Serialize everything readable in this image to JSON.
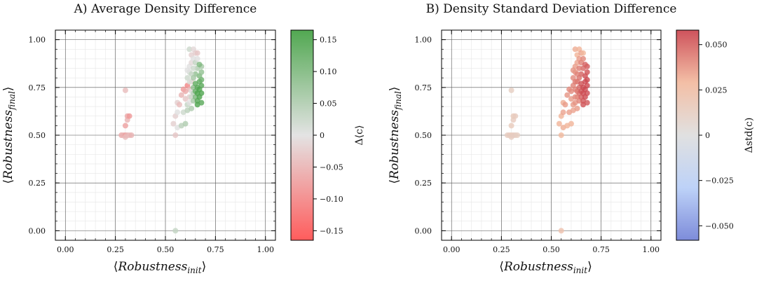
{
  "chart_data": [
    {
      "type": "scatter",
      "title": "A) Average Density Difference",
      "xlabel_main": "Robustness",
      "xlabel_sub": "init",
      "ylabel_main": "Robustness",
      "ylabel_sub": "final",
      "xlim": [
        -0.05,
        1.05
      ],
      "ylim": [
        -0.05,
        1.05
      ],
      "xticks": [
        0,
        0.25,
        0.5,
        0.75,
        1
      ],
      "xtick_labels": [
        "0.00",
        "0.25",
        "0.50",
        "0.75",
        "1.00"
      ],
      "yticks": [
        0,
        0.25,
        0.5,
        0.75,
        1
      ],
      "ytick_labels": [
        "0.00",
        "0.25",
        "0.50",
        "0.75",
        "1.00"
      ],
      "grid": true,
      "colorbar": {
        "label": "Δ⟨c⟩",
        "range": [
          -0.165,
          0.165
        ],
        "ticks": [
          -0.15,
          -0.1,
          -0.05,
          0,
          0.05,
          0.1,
          0.15
        ],
        "tick_labels": [
          "−0.15",
          "−0.10",
          "−0.05",
          "0",
          "0.05",
          "0.10",
          "0.15"
        ],
        "colors": [
          "#ff4a4a",
          "#e0e0e0",
          "#3e9e3e"
        ]
      },
      "points": [
        [
          0.3,
          0.735,
          -0.04
        ],
        [
          0.3,
          0.55,
          -0.07
        ],
        [
          0.31,
          0.58,
          -0.05
        ],
        [
          0.31,
          0.6,
          -0.06
        ],
        [
          0.32,
          0.6,
          -0.08
        ],
        [
          0.28,
          0.5,
          -0.06
        ],
        [
          0.29,
          0.5,
          -0.05
        ],
        [
          0.3,
          0.5,
          -0.07
        ],
        [
          0.31,
          0.5,
          -0.05
        ],
        [
          0.32,
          0.5,
          -0.04
        ],
        [
          0.33,
          0.5,
          -0.05
        ],
        [
          0.3,
          0.49,
          -0.04
        ],
        [
          0.55,
          0.0,
          0.03
        ],
        [
          0.54,
          0.56,
          -0.02
        ],
        [
          0.55,
          0.5,
          -0.03
        ],
        [
          0.56,
          0.54,
          0.0
        ],
        [
          0.55,
          0.6,
          -0.02
        ],
        [
          0.56,
          0.62,
          0.0
        ],
        [
          0.56,
          0.67,
          -0.02
        ],
        [
          0.57,
          0.66,
          -0.04
        ],
        [
          0.58,
          0.55,
          0.04
        ],
        [
          0.59,
          0.62,
          0.02
        ],
        [
          0.6,
          0.56,
          0.05
        ],
        [
          0.58,
          0.71,
          -0.05
        ],
        [
          0.59,
          0.74,
          -0.08
        ],
        [
          0.6,
          0.69,
          -0.03
        ],
        [
          0.6,
          0.73,
          -0.06
        ],
        [
          0.61,
          0.76,
          -0.1
        ],
        [
          0.61,
          0.63,
          0.04
        ],
        [
          0.61,
          0.66,
          0.03
        ],
        [
          0.62,
          0.67,
          0.0
        ],
        [
          0.62,
          0.7,
          -0.02
        ],
        [
          0.62,
          0.74,
          -0.05
        ],
        [
          0.63,
          0.64,
          0.05
        ],
        [
          0.63,
          0.7,
          0.02
        ],
        [
          0.63,
          0.73,
          0.0
        ],
        [
          0.63,
          0.78,
          -0.02
        ],
        [
          0.64,
          0.68,
          0.06
        ],
        [
          0.64,
          0.72,
          0.04
        ],
        [
          0.64,
          0.75,
          0.08
        ],
        [
          0.65,
          0.7,
          0.1
        ],
        [
          0.65,
          0.73,
          0.12
        ],
        [
          0.65,
          0.77,
          0.13
        ],
        [
          0.66,
          0.68,
          0.14
        ],
        [
          0.66,
          0.72,
          0.15
        ],
        [
          0.66,
          0.75,
          0.14
        ],
        [
          0.67,
          0.7,
          0.15
        ],
        [
          0.67,
          0.74,
          0.15
        ],
        [
          0.67,
          0.78,
          0.13
        ],
        [
          0.68,
          0.72,
          0.15
        ],
        [
          0.68,
          0.76,
          0.14
        ],
        [
          0.68,
          0.79,
          0.12
        ],
        [
          0.66,
          0.66,
          0.15
        ],
        [
          0.68,
          0.67,
          0.14
        ],
        [
          0.67,
          0.81,
          0.1
        ],
        [
          0.68,
          0.83,
          0.08
        ],
        [
          0.68,
          0.86,
          0.06
        ],
        [
          0.61,
          0.8,
          0.02
        ],
        [
          0.62,
          0.83,
          0.01
        ],
        [
          0.62,
          0.86,
          0.0
        ],
        [
          0.63,
          0.88,
          -0.01
        ],
        [
          0.63,
          0.92,
          -0.02
        ],
        [
          0.62,
          0.95,
          0.02
        ],
        [
          0.64,
          0.95,
          -0.01
        ],
        [
          0.64,
          0.9,
          0.0
        ],
        [
          0.65,
          0.93,
          -0.02
        ],
        [
          0.65,
          0.88,
          0.03
        ],
        [
          0.66,
          0.9,
          0.0
        ],
        [
          0.66,
          0.85,
          0.05
        ],
        [
          0.64,
          0.85,
          0.02
        ],
        [
          0.65,
          0.82,
          0.08
        ],
        [
          0.67,
          0.87,
          0.1
        ],
        [
          0.63,
          0.82,
          0.03
        ],
        [
          0.64,
          0.8,
          0.06
        ],
        [
          0.62,
          0.78,
          0.01
        ],
        [
          0.61,
          0.84,
          0.0
        ],
        [
          0.66,
          0.93,
          -0.03
        ]
      ]
    },
    {
      "type": "scatter",
      "title": "B) Density Standard Deviation Difference",
      "xlabel_main": "Robustness",
      "xlabel_sub": "init",
      "ylabel_main": "Robustness",
      "ylabel_sub": "final",
      "xlim": [
        -0.05,
        1.05
      ],
      "ylim": [
        -0.05,
        1.05
      ],
      "xticks": [
        0,
        0.25,
        0.5,
        0.75,
        1
      ],
      "xtick_labels": [
        "0.00",
        "0.25",
        "0.50",
        "0.75",
        "1.00"
      ],
      "yticks": [
        0,
        0.25,
        0.5,
        0.75,
        1
      ],
      "ytick_labels": [
        "0.00",
        "0.25",
        "0.50",
        "0.75",
        "1.00"
      ],
      "grid": true,
      "colorbar": {
        "label": "Δstd(c)",
        "range": [
          -0.058,
          0.058
        ],
        "ticks": [
          -0.05,
          -0.025,
          0,
          0.025,
          0.05
        ],
        "tick_labels": [
          "−0.050",
          "−0.025",
          "0",
          "0.025",
          "0.050"
        ],
        "colors": [
          "#6f7fd6",
          "#b6cdf7",
          "#dddddd",
          "#f2b89c",
          "#c9404a"
        ]
      },
      "points": [
        [
          0.3,
          0.735,
          0.012
        ],
        [
          0.3,
          0.55,
          0.015
        ],
        [
          0.31,
          0.58,
          0.014
        ],
        [
          0.31,
          0.6,
          0.016
        ],
        [
          0.32,
          0.6,
          0.014
        ],
        [
          0.28,
          0.5,
          0.013
        ],
        [
          0.29,
          0.5,
          0.014
        ],
        [
          0.3,
          0.5,
          0.015
        ],
        [
          0.31,
          0.5,
          0.014
        ],
        [
          0.32,
          0.5,
          0.013
        ],
        [
          0.33,
          0.5,
          0.012
        ],
        [
          0.3,
          0.49,
          0.013
        ],
        [
          0.55,
          0.0,
          0.022
        ],
        [
          0.54,
          0.56,
          0.03
        ],
        [
          0.55,
          0.5,
          0.028
        ],
        [
          0.56,
          0.54,
          0.032
        ],
        [
          0.55,
          0.6,
          0.03
        ],
        [
          0.56,
          0.62,
          0.034
        ],
        [
          0.56,
          0.67,
          0.032
        ],
        [
          0.57,
          0.66,
          0.036
        ],
        [
          0.58,
          0.55,
          0.03
        ],
        [
          0.59,
          0.62,
          0.035
        ],
        [
          0.6,
          0.56,
          0.03
        ],
        [
          0.58,
          0.71,
          0.038
        ],
        [
          0.59,
          0.74,
          0.04
        ],
        [
          0.6,
          0.69,
          0.036
        ],
        [
          0.6,
          0.73,
          0.04
        ],
        [
          0.61,
          0.76,
          0.042
        ],
        [
          0.61,
          0.63,
          0.034
        ],
        [
          0.61,
          0.66,
          0.036
        ],
        [
          0.62,
          0.67,
          0.038
        ],
        [
          0.62,
          0.7,
          0.04
        ],
        [
          0.62,
          0.74,
          0.042
        ],
        [
          0.63,
          0.64,
          0.036
        ],
        [
          0.63,
          0.7,
          0.04
        ],
        [
          0.63,
          0.73,
          0.044
        ],
        [
          0.63,
          0.78,
          0.046
        ],
        [
          0.64,
          0.68,
          0.042
        ],
        [
          0.64,
          0.72,
          0.046
        ],
        [
          0.64,
          0.75,
          0.048
        ],
        [
          0.65,
          0.7,
          0.05
        ],
        [
          0.65,
          0.73,
          0.052
        ],
        [
          0.65,
          0.77,
          0.054
        ],
        [
          0.66,
          0.68,
          0.052
        ],
        [
          0.66,
          0.72,
          0.055
        ],
        [
          0.66,
          0.75,
          0.056
        ],
        [
          0.67,
          0.7,
          0.055
        ],
        [
          0.67,
          0.74,
          0.056
        ],
        [
          0.67,
          0.78,
          0.056
        ],
        [
          0.68,
          0.72,
          0.055
        ],
        [
          0.68,
          0.76,
          0.056
        ],
        [
          0.68,
          0.79,
          0.056
        ],
        [
          0.66,
          0.66,
          0.054
        ],
        [
          0.68,
          0.67,
          0.052
        ],
        [
          0.67,
          0.81,
          0.055
        ],
        [
          0.68,
          0.83,
          0.054
        ],
        [
          0.68,
          0.86,
          0.052
        ],
        [
          0.61,
          0.8,
          0.04
        ],
        [
          0.62,
          0.83,
          0.038
        ],
        [
          0.62,
          0.86,
          0.036
        ],
        [
          0.63,
          0.88,
          0.034
        ],
        [
          0.63,
          0.92,
          0.03
        ],
        [
          0.62,
          0.95,
          0.032
        ],
        [
          0.64,
          0.95,
          0.03
        ],
        [
          0.64,
          0.9,
          0.036
        ],
        [
          0.65,
          0.93,
          0.034
        ],
        [
          0.65,
          0.88,
          0.042
        ],
        [
          0.66,
          0.9,
          0.04
        ],
        [
          0.66,
          0.85,
          0.048
        ],
        [
          0.64,
          0.85,
          0.044
        ],
        [
          0.65,
          0.82,
          0.05
        ],
        [
          0.67,
          0.87,
          0.05
        ],
        [
          0.63,
          0.82,
          0.042
        ],
        [
          0.64,
          0.8,
          0.046
        ],
        [
          0.62,
          0.78,
          0.044
        ],
        [
          0.61,
          0.84,
          0.038
        ],
        [
          0.66,
          0.93,
          0.028
        ]
      ]
    }
  ]
}
